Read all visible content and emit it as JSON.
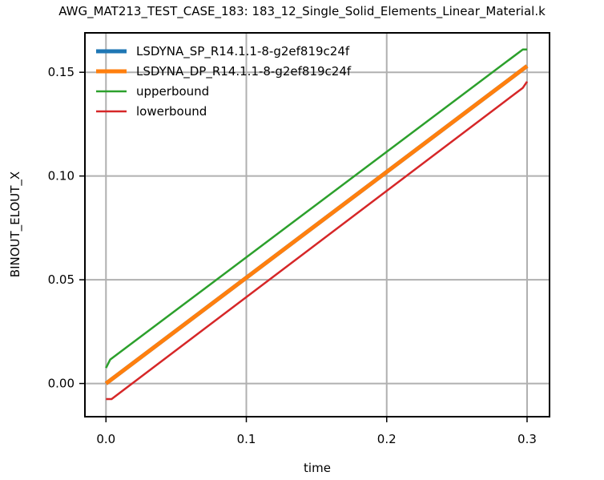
{
  "chart_data": {
    "type": "line",
    "title": "AWG_MAT213_TEST_CASE_183: 183_12_Single_Solid_Elements_Linear_Material.k",
    "xlabel": "time",
    "ylabel": "BINOUT_ELOUT_X",
    "xlim": [
      -0.015,
      0.316
    ],
    "ylim": [
      -0.016,
      0.169
    ],
    "xticks": [
      0.0,
      0.1,
      0.2,
      0.3
    ],
    "xtick_labels": [
      "0.0",
      "0.1",
      "0.2",
      "0.3"
    ],
    "yticks": [
      0.0,
      0.05,
      0.1,
      0.15
    ],
    "ytick_labels": [
      "0.00",
      "0.05",
      "0.10",
      "0.15"
    ],
    "grid": true,
    "legend_position": "top-left",
    "series": [
      {
        "name": "LSDYNA_SP_R14.1.1-8-g2ef819c24f",
        "color": "#1f77b4",
        "width": "thick",
        "x": [
          0.0,
          0.3
        ],
        "y": [
          0.0,
          0.153
        ]
      },
      {
        "name": "LSDYNA_DP_R14.1.1-8-g2ef819c24f",
        "color": "#ff7f0e",
        "width": "thick",
        "x": [
          0.0,
          0.3
        ],
        "y": [
          0.0,
          0.153
        ]
      },
      {
        "name": "upperbound",
        "color": "#2ca02c",
        "width": "thin",
        "x": [
          0.0,
          0.003,
          0.297,
          0.3
        ],
        "y": [
          0.0075,
          0.0115,
          0.161,
          0.161
        ]
      },
      {
        "name": "lowerbound",
        "color": "#d62728",
        "width": "thin",
        "x": [
          0.0,
          0.004,
          0.297,
          0.3
        ],
        "y": [
          -0.0075,
          -0.0075,
          0.1425,
          0.1455
        ]
      }
    ]
  }
}
